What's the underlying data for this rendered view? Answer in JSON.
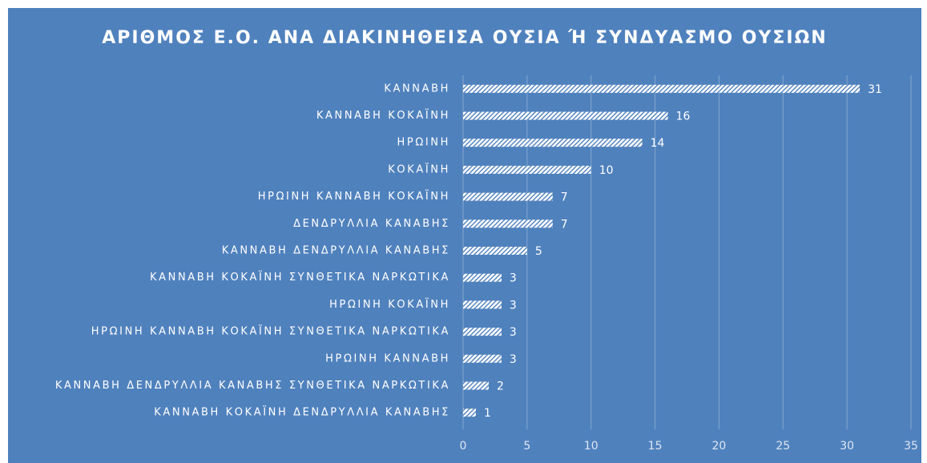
{
  "chart_data": {
    "type": "barh",
    "title": "ΑΡΙΘΜΟΣ Ε.Ο. ΑΝΑ ΔΙΑΚΙΝΗΘΕΙΣΑ ΟΥΣΙΑ Ή ΣΥΝΔΥΑΣΜΟ ΟΥΣΙΩΝ",
    "categories": [
      "ΚΑΝΝΑΒΗ",
      "ΚΑΝΝΑΒΗ ΚΟΚΑΪΝΗ",
      "ΗΡΩΙΝΗ",
      "ΚΟΚΑΪΝΗ",
      "ΗΡΩΙΝΗ ΚΑΝΝΑΒΗ ΚΟΚΑΪΝΗ",
      "ΔΕΝΔΡΥΛΛΙΑ ΚΑΝΑΒΗΣ",
      "ΚΑΝΝΑΒΗ ΔΕΝΔΡΥΛΛΙΑ ΚΑΝΑΒΗΣ",
      "ΚΑΝΝΑΒΗ ΚΟΚΑΪΝΗ ΣΥΝΘΕΤΙΚΑ ΝΑΡΚΩΤΙΚΑ",
      "ΗΡΩΙΝΗ ΚΟΚΑΪΝΗ",
      "ΗΡΩΙΝΗ ΚΑΝΝΑΒΗ ΚΟΚΑΪΝΗ ΣΥΝΘΕΤΙΚΑ ΝΑΡΚΩΤΙΚΑ",
      "ΗΡΩΙΝΗ ΚΑΝΝΑΒΗ",
      "ΚΑΝΝΑΒΗ ΔΕΝΔΡΥΛΛΙΑ ΚΑΝΑΒΗΣ ΣΥΝΘΕΤΙΚΑ ΝΑΡΚΩΤΙΚΑ",
      "ΚΑΝΝΑΒΗ ΚΟΚΑΪΝΗ ΔΕΝΔΡΥΛΛΙΑ ΚΑΝΑΒΗΣ"
    ],
    "values": [
      31,
      16,
      14,
      10,
      7,
      7,
      5,
      3,
      3,
      3,
      3,
      2,
      1
    ],
    "color": "#ffffff",
    "xlim": [
      0,
      35
    ],
    "xticks": [
      0,
      5,
      10,
      15,
      20,
      25,
      30,
      35
    ],
    "grid": true
  }
}
